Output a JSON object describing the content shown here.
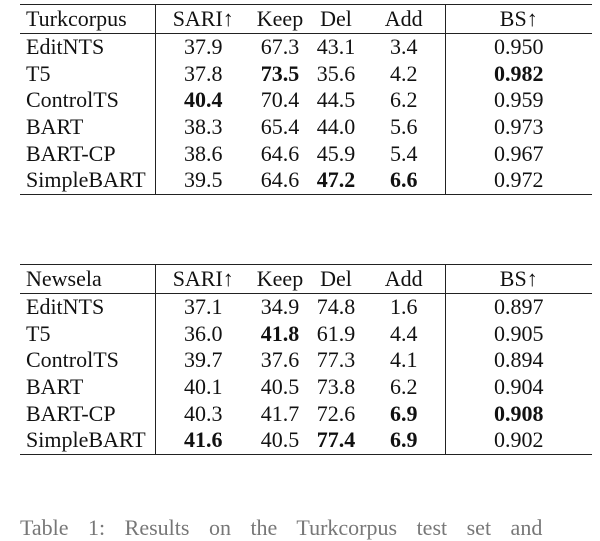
{
  "columns": [
    "SARI↑",
    "Keep",
    "Del",
    "Add",
    "BS↑"
  ],
  "tables": [
    {
      "dataset": "Turkcorpus",
      "rows": [
        {
          "model": "EditNTS",
          "values": [
            "37.9",
            "67.3",
            "43.1",
            "3.4",
            "0.950"
          ],
          "bold": [
            false,
            false,
            false,
            false,
            false
          ]
        },
        {
          "model": "T5",
          "values": [
            "37.8",
            "73.5",
            "35.6",
            "4.2",
            "0.982"
          ],
          "bold": [
            false,
            true,
            false,
            false,
            true
          ]
        },
        {
          "model": "ControlTS",
          "values": [
            "40.4",
            "70.4",
            "44.5",
            "6.2",
            "0.959"
          ],
          "bold": [
            true,
            false,
            false,
            false,
            false
          ]
        },
        {
          "model": "BART",
          "values": [
            "38.3",
            "65.4",
            "44.0",
            "5.6",
            "0.973"
          ],
          "bold": [
            false,
            false,
            false,
            false,
            false
          ]
        },
        {
          "model": "BART-CP",
          "values": [
            "38.6",
            "64.6",
            "45.9",
            "5.4",
            "0.967"
          ],
          "bold": [
            false,
            false,
            false,
            false,
            false
          ]
        },
        {
          "model": "SimpleBART",
          "values": [
            "39.5",
            "64.6",
            "47.2",
            "6.6",
            "0.972"
          ],
          "bold": [
            false,
            false,
            true,
            true,
            false
          ]
        }
      ]
    },
    {
      "dataset": "Newsela",
      "rows": [
        {
          "model": "EditNTS",
          "values": [
            "37.1",
            "34.9",
            "74.8",
            "1.6",
            "0.897"
          ],
          "bold": [
            false,
            false,
            false,
            false,
            false
          ]
        },
        {
          "model": "T5",
          "values": [
            "36.0",
            "41.8",
            "61.9",
            "4.4",
            "0.905"
          ],
          "bold": [
            false,
            true,
            false,
            false,
            false
          ]
        },
        {
          "model": "ControlTS",
          "values": [
            "39.7",
            "37.6",
            "77.3",
            "4.1",
            "0.894"
          ],
          "bold": [
            false,
            false,
            false,
            false,
            false
          ]
        },
        {
          "model": "BART",
          "values": [
            "40.1",
            "40.5",
            "73.8",
            "6.2",
            "0.904"
          ],
          "bold": [
            false,
            false,
            false,
            false,
            false
          ]
        },
        {
          "model": "BART-CP",
          "values": [
            "40.3",
            "41.7",
            "72.6",
            "6.9",
            "0.908"
          ],
          "bold": [
            false,
            false,
            false,
            true,
            true
          ]
        },
        {
          "model": "SimpleBART",
          "values": [
            "41.6",
            "40.5",
            "77.4",
            "6.9",
            "0.902"
          ],
          "bold": [
            true,
            false,
            true,
            true,
            false
          ]
        }
      ]
    }
  ],
  "caption": "Table 1: Results on the Turkcorpus test set and"
}
